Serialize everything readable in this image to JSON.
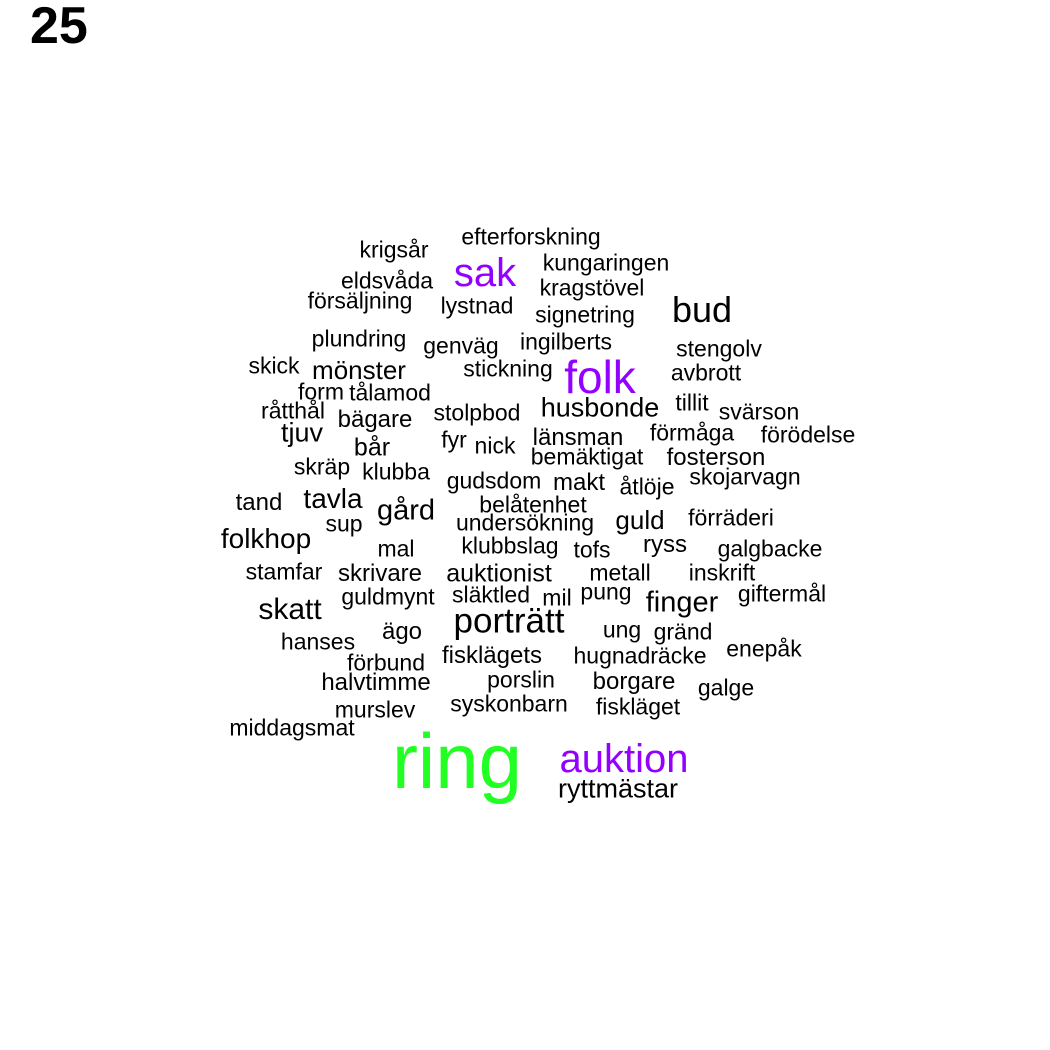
{
  "page_number": "25",
  "colors": {
    "default": "#000000",
    "purple": "#9400ff",
    "green": "#22ff22"
  },
  "words": [
    {
      "text": "efterforskning"
    },
    {
      "text": "krigsår"
    },
    {
      "text": "kungaringen"
    },
    {
      "text": "sak",
      "color": "purple"
    },
    {
      "text": "eldsvåda"
    },
    {
      "text": "kragstövel"
    },
    {
      "text": "försäljning"
    },
    {
      "text": "lystnad"
    },
    {
      "text": "bud"
    },
    {
      "text": "signetring"
    },
    {
      "text": "plundring"
    },
    {
      "text": "genväg"
    },
    {
      "text": "ingilberts"
    },
    {
      "text": "stengolv"
    },
    {
      "text": "skick"
    },
    {
      "text": "mönster"
    },
    {
      "text": "stickning"
    },
    {
      "text": "folk",
      "color": "purple"
    },
    {
      "text": "avbrott"
    },
    {
      "text": "form"
    },
    {
      "text": "tålamod"
    },
    {
      "text": "råtthål"
    },
    {
      "text": "stolpbod"
    },
    {
      "text": "husbonde"
    },
    {
      "text": "tillit"
    },
    {
      "text": "svärson"
    },
    {
      "text": "bägare"
    },
    {
      "text": "tjuv"
    },
    {
      "text": "fyr"
    },
    {
      "text": "nick"
    },
    {
      "text": "länsman"
    },
    {
      "text": "förmåga"
    },
    {
      "text": "förödelse"
    },
    {
      "text": "bår"
    },
    {
      "text": "bemäktigat"
    },
    {
      "text": "fosterson"
    },
    {
      "text": "skräp"
    },
    {
      "text": "klubba"
    },
    {
      "text": "gudsdom"
    },
    {
      "text": "makt"
    },
    {
      "text": "skojarvagn"
    },
    {
      "text": "åtlöje"
    },
    {
      "text": "tand"
    },
    {
      "text": "tavla"
    },
    {
      "text": "belåtenhet"
    },
    {
      "text": "gård"
    },
    {
      "text": "guld"
    },
    {
      "text": "förräderi"
    },
    {
      "text": "sup"
    },
    {
      "text": "undersökning"
    },
    {
      "text": "folkhop"
    },
    {
      "text": "mal"
    },
    {
      "text": "klubbslag"
    },
    {
      "text": "tofs"
    },
    {
      "text": "ryss"
    },
    {
      "text": "galgbacke"
    },
    {
      "text": "stamfar"
    },
    {
      "text": "skrivare"
    },
    {
      "text": "auktionist"
    },
    {
      "text": "metall"
    },
    {
      "text": "inskrift"
    },
    {
      "text": "guldmynt"
    },
    {
      "text": "släktled"
    },
    {
      "text": "mil"
    },
    {
      "text": "pung"
    },
    {
      "text": "giftermål"
    },
    {
      "text": "finger"
    },
    {
      "text": "skatt"
    },
    {
      "text": "porträtt"
    },
    {
      "text": "ägo"
    },
    {
      "text": "ung"
    },
    {
      "text": "gränd"
    },
    {
      "text": "hanses"
    },
    {
      "text": "enepåk"
    },
    {
      "text": "fiskläget"
    },
    {
      "text": "förbund"
    },
    {
      "text": "fisklägets"
    },
    {
      "text": "hugnadräcke"
    },
    {
      "text": "porslin"
    },
    {
      "text": "halvtimme"
    },
    {
      "text": "borgare"
    },
    {
      "text": "galge"
    },
    {
      "text": "syskonbarn"
    },
    {
      "text": "murslev"
    },
    {
      "text": "middagsmat"
    },
    {
      "text": "ring",
      "color": "green"
    },
    {
      "text": "auktion",
      "color": "purple"
    },
    {
      "text": "ryttmästar"
    }
  ]
}
